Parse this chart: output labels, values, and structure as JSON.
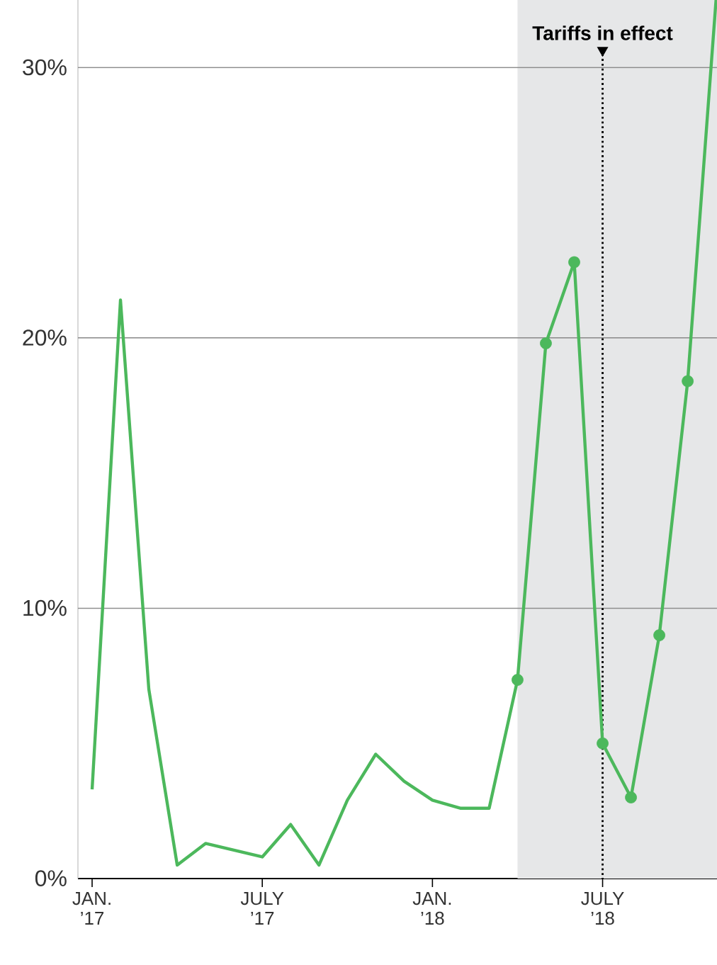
{
  "chart_data": {
    "type": "line",
    "x": [
      "2017-01",
      "2017-02",
      "2017-03",
      "2017-04",
      "2017-05",
      "2017-06",
      "2017-07",
      "2017-08",
      "2017-09",
      "2017-10",
      "2017-11",
      "2017-12",
      "2018-01",
      "2018-02",
      "2018-03",
      "2018-04",
      "2018-05",
      "2018-06",
      "2018-07",
      "2018-08",
      "2018-09",
      "2018-10",
      "2018-11"
    ],
    "series": [
      {
        "color": "#4cb85c",
        "values": [
          3.3,
          21.4,
          7.0,
          0.5,
          1.3,
          1.05,
          0.8,
          2.0,
          0.5,
          2.9,
          4.6,
          3.6,
          2.9,
          2.6,
          2.6,
          7.35,
          19.8,
          22.8,
          5.0,
          3.0,
          9.0,
          18.4,
          32.5
        ],
        "marker": "none"
      },
      {
        "type": "scatter",
        "color": "#4cb85c",
        "x": [
          "2018-04",
          "2018-05",
          "2018-06",
          "2018-07",
          "2018-08",
          "2018-09",
          "2018-10"
        ],
        "values": [
          7.35,
          19.8,
          22.8,
          5.0,
          3.0,
          9.0,
          18.4
        ],
        "marker": "circle"
      }
    ],
    "xlim": [
      "2016-12-16",
      "2018-11-02"
    ],
    "ylim": [
      0,
      32.5
    ],
    "xticks": [
      {
        "value": "2017-01",
        "label": "JAN. ’17"
      },
      {
        "value": "2017-07",
        "label": "JULY ’17"
      },
      {
        "value": "2018-01",
        "label": "JAN. ’18"
      },
      {
        "value": "2018-07",
        "label": "JULY ’18"
      }
    ],
    "yticks": [
      {
        "value": 0,
        "label": "0%"
      },
      {
        "value": 10,
        "label": "10%"
      },
      {
        "value": 20,
        "label": "20%"
      },
      {
        "value": 30,
        "label": "30%"
      }
    ],
    "grid": "y",
    "ref_lines": [
      {
        "axis": "x",
        "value": "2018-07",
        "label": "Tariffs in effect",
        "color": "#000000",
        "line_style": "dotted"
      }
    ],
    "bands": [
      {
        "axis": "x",
        "from": "2018-04",
        "to": "2018-11-02",
        "color": "#e6e7e8"
      }
    ]
  }
}
